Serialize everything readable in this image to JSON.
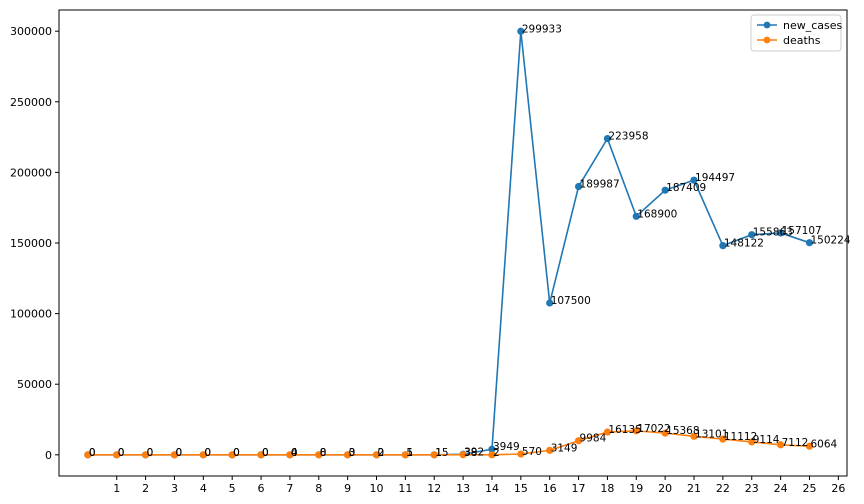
{
  "chart_data": {
    "type": "line",
    "title": "",
    "xlabel": "",
    "ylabel": "",
    "x": [
      0,
      1,
      2,
      3,
      4,
      5,
      6,
      7,
      8,
      9,
      10,
      11,
      12,
      13,
      14,
      15,
      16,
      17,
      18,
      19,
      20,
      21,
      22,
      23,
      24,
      25
    ],
    "xticks": [
      1,
      2,
      3,
      4,
      5,
      6,
      7,
      8,
      9,
      10,
      11,
      12,
      13,
      14,
      15,
      16,
      17,
      18,
      19,
      20,
      21,
      22,
      23,
      24,
      25,
      26
    ],
    "xlim": [
      -1,
      26.3
    ],
    "yticks": [
      0,
      50000,
      100000,
      150000,
      200000,
      250000,
      300000
    ],
    "ylim": [
      -15000,
      315000
    ],
    "grid": false,
    "legend_position": "top-right",
    "series": [
      {
        "name": "new_cases",
        "color": "#1f77b4",
        "values": [
          0,
          0,
          0,
          0,
          0,
          0,
          0,
          4,
          8,
          3,
          2,
          5,
          15,
          392,
          3949,
          299933,
          107500,
          189987,
          223958,
          168900,
          187409,
          194497,
          148122,
          155863,
          157107,
          150224
        ],
        "labels": [
          "0",
          "0",
          "0",
          "0",
          "0",
          "0",
          "0",
          "4",
          "8",
          "3",
          "2",
          "5",
          "15",
          "392",
          "3949",
          "299933",
          "107500",
          "189987",
          "223958",
          "168900",
          "187409",
          "194497",
          "148122",
          "155863",
          "157107",
          "150224"
        ]
      },
      {
        "name": "deaths",
        "color": "#ff7f0e",
        "values": [
          0,
          0,
          0,
          0,
          0,
          0,
          0,
          0,
          0,
          0,
          0,
          1,
          1,
          38,
          2,
          570,
          3149,
          9984,
          16135,
          17022,
          15368,
          13101,
          11112,
          9114,
          7112,
          6064
        ],
        "labels": [
          "0",
          "0",
          "0",
          "0",
          "0",
          "0",
          "0",
          "0",
          "0",
          "0",
          "0",
          "1",
          "1",
          "38",
          "2",
          "570",
          "3149",
          "9984",
          "16135",
          "17022",
          "15368",
          "13101",
          "11112",
          "9114",
          "7112",
          "6064"
        ]
      }
    ]
  }
}
